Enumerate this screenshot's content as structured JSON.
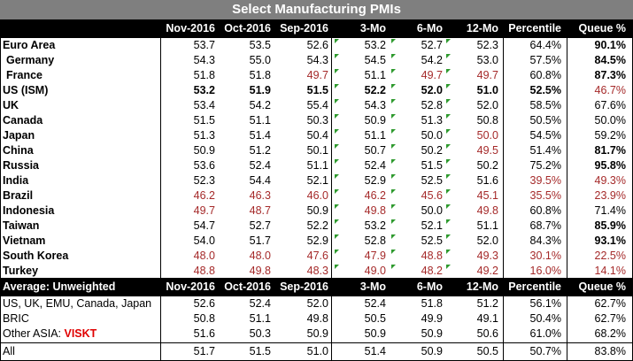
{
  "title": "Select Manufacturing PMIs",
  "columns": [
    "Nov-2016",
    "Oct-2016",
    "Sep-2016",
    "3-Mo",
    "6-Mo",
    "12-Mo",
    "Percentile",
    "Queue %"
  ],
  "countries": [
    {
      "name": "Euro Area",
      "indent": false,
      "bold": true,
      "v": [
        "53.7",
        "53.5",
        "52.6",
        "53.2",
        "52.7",
        "52.3",
        "64.4%",
        "90.1%"
      ],
      "bcells": [
        7
      ],
      "rcells": []
    },
    {
      "name": "Germany",
      "indent": true,
      "bold": true,
      "v": [
        "54.3",
        "55.0",
        "54.3",
        "54.5",
        "54.2",
        "53.0",
        "57.5%",
        "84.5%"
      ],
      "bcells": [
        7
      ],
      "rcells": []
    },
    {
      "name": "France",
      "indent": true,
      "bold": true,
      "v": [
        "51.8",
        "51.8",
        "49.7",
        "51.1",
        "49.7",
        "49.7",
        "60.8%",
        "87.3%"
      ],
      "bcells": [
        7
      ],
      "rcells": [
        2,
        4,
        5
      ]
    },
    {
      "name": "US (ISM)",
      "indent": false,
      "bold": true,
      "v": [
        "53.2",
        "51.9",
        "51.5",
        "52.2",
        "52.0",
        "51.0",
        "52.5%",
        "46.7%"
      ],
      "bcells": [
        0,
        1,
        2,
        3,
        4,
        5,
        6
      ],
      "rcells": [
        7
      ]
    },
    {
      "name": "UK",
      "indent": false,
      "bold": true,
      "v": [
        "53.4",
        "54.2",
        "55.4",
        "54.3",
        "52.8",
        "52.0",
        "58.5%",
        "67.6%"
      ],
      "bcells": [],
      "rcells": []
    },
    {
      "name": "Canada",
      "indent": false,
      "bold": true,
      "v": [
        "51.5",
        "51.1",
        "50.3",
        "50.9",
        "51.3",
        "50.8",
        "50.5%",
        "50.0%"
      ],
      "bcells": [],
      "rcells": []
    },
    {
      "name": "Japan",
      "indent": false,
      "bold": true,
      "v": [
        "51.3",
        "51.4",
        "50.4",
        "51.1",
        "50.0",
        "50.0",
        "54.5%",
        "59.2%"
      ],
      "bcells": [],
      "rcells": [
        5
      ]
    },
    {
      "name": "China",
      "indent": false,
      "bold": true,
      "v": [
        "50.9",
        "51.2",
        "50.1",
        "50.7",
        "50.2",
        "49.5",
        "51.4%",
        "81.7%"
      ],
      "bcells": [
        7
      ],
      "rcells": [
        5
      ]
    },
    {
      "name": "Russia",
      "indent": false,
      "bold": true,
      "v": [
        "53.6",
        "52.4",
        "51.1",
        "52.4",
        "51.5",
        "50.2",
        "75.2%",
        "95.8%"
      ],
      "bcells": [
        7
      ],
      "rcells": []
    },
    {
      "name": "India",
      "indent": false,
      "bold": true,
      "v": [
        "52.3",
        "54.4",
        "52.1",
        "52.9",
        "52.5",
        "51.6",
        "39.5%",
        "49.3%"
      ],
      "bcells": [],
      "rcells": [
        6,
        7
      ]
    },
    {
      "name": "Brazil",
      "indent": false,
      "bold": true,
      "v": [
        "46.2",
        "46.3",
        "46.0",
        "46.2",
        "45.6",
        "45.1",
        "35.5%",
        "23.9%"
      ],
      "bcells": [],
      "rcells": [
        0,
        1,
        2,
        3,
        4,
        5,
        6,
        7
      ]
    },
    {
      "name": "Indonesia",
      "indent": false,
      "bold": true,
      "v": [
        "49.7",
        "48.7",
        "50.9",
        "49.8",
        "50.0",
        "49.8",
        "60.8%",
        "71.4%"
      ],
      "bcells": [],
      "rcells": [
        0,
        1,
        3,
        5
      ]
    },
    {
      "name": "Taiwan",
      "indent": false,
      "bold": true,
      "v": [
        "54.7",
        "52.7",
        "52.2",
        "53.2",
        "52.1",
        "51.1",
        "68.7%",
        "85.9%"
      ],
      "bcells": [
        7
      ],
      "rcells": []
    },
    {
      "name": "Vietnam",
      "indent": false,
      "bold": true,
      "v": [
        "54.0",
        "51.7",
        "52.9",
        "52.8",
        "52.5",
        "52.0",
        "84.3%",
        "93.1%"
      ],
      "bcells": [
        7
      ],
      "rcells": []
    },
    {
      "name": "South Korea",
      "indent": false,
      "bold": true,
      "v": [
        "48.0",
        "48.0",
        "47.6",
        "47.9",
        "48.8",
        "49.3",
        "30.1%",
        "22.5%"
      ],
      "bcells": [],
      "rcells": [
        0,
        1,
        2,
        3,
        4,
        5,
        6,
        7
      ]
    },
    {
      "name": "Turkey",
      "indent": false,
      "bold": true,
      "v": [
        "48.8",
        "49.8",
        "48.3",
        "49.0",
        "48.2",
        "49.2",
        "16.0%",
        "14.1%"
      ],
      "bcells": [],
      "rcells": [
        0,
        1,
        2,
        3,
        4,
        5,
        6,
        7
      ]
    }
  ],
  "avg_header": {
    "label": "Average: Unweighted",
    "columns": [
      "Nov-2016",
      "Oct-2016",
      "Sep-2016",
      "3-Mo",
      "6-Mo",
      "12-Mo",
      "Percentile",
      "Queue %"
    ]
  },
  "averages": [
    {
      "name": "US, UK, EMU, Canada, Japan",
      "v": [
        "52.6",
        "52.4",
        "52.0",
        "52.4",
        "51.8",
        "51.2",
        "56.1%",
        "62.7%"
      ]
    },
    {
      "name": "BRIC",
      "v": [
        "50.8",
        "51.1",
        "49.8",
        "50.5",
        "49.9",
        "49.1",
        "50.4%",
        "62.7%"
      ]
    },
    {
      "name": "Other ASIA:",
      "suffix": "VISKT",
      "v": [
        "51.6",
        "50.3",
        "50.9",
        "50.9",
        "50.9",
        "50.6",
        "61.0%",
        "68.2%"
      ]
    }
  ],
  "all_row": {
    "name": "All",
    "v": [
      "51.7",
      "51.5",
      "51.0",
      "51.4",
      "50.9",
      "50.5",
      "50.7%",
      "83.8%"
    ]
  },
  "colors": {
    "red": "#a52a2a",
    "title_bg": "#7f7f7f",
    "header_bg": "#000000",
    "accent_red": "#e00000",
    "marker": "#2e9a2e"
  }
}
